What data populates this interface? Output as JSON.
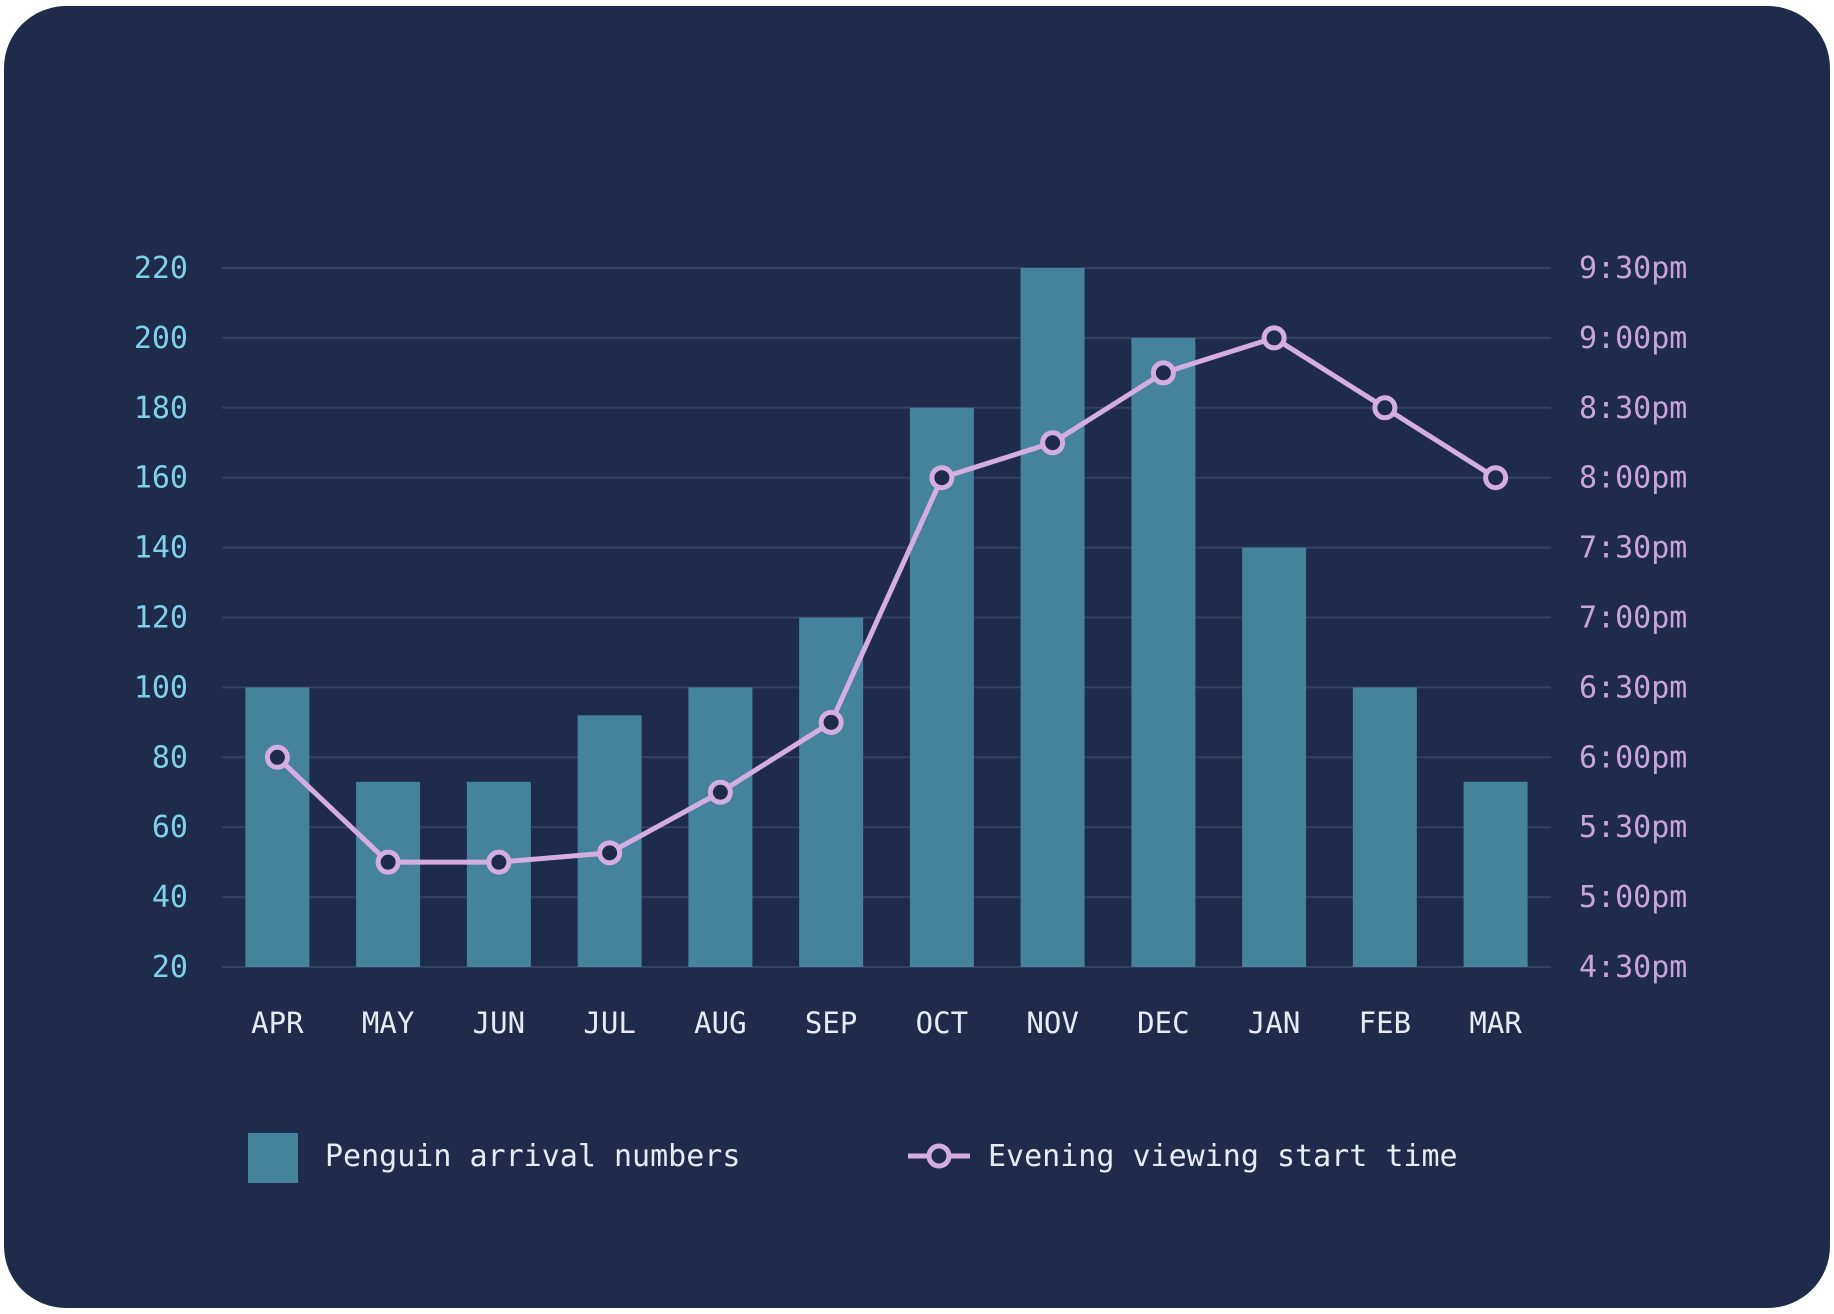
{
  "colors": {
    "background": "#1f2b4a",
    "bar": "#45839c",
    "line": "#d4aee0",
    "left_axis_text": "#7fd1ea",
    "right_axis_text": "#c9a4dc",
    "category_text": "#e6ecf3",
    "legend_text": "#e6ecf3",
    "grid": "#33425f"
  },
  "chart_data": {
    "type": "bar",
    "categories": [
      "APR",
      "MAY",
      "JUN",
      "JUL",
      "AUG",
      "SEP",
      "OCT",
      "NOV",
      "DEC",
      "JAN",
      "FEB",
      "MAR"
    ],
    "series": [
      {
        "name": "Penguin arrival numbers",
        "type": "bar",
        "axis": "left",
        "values": [
          100,
          73,
          73,
          92,
          100,
          120,
          180,
          220,
          200,
          140,
          100,
          73
        ]
      },
      {
        "name": "Evening viewing start time",
        "type": "line",
        "axis": "right",
        "values": [
          "6:00pm",
          "5:15pm",
          "5:15pm",
          "5:19pm",
          "5:45pm",
          "6:15pm",
          "8:00pm",
          "8:15pm",
          "8:45pm",
          "9:00pm",
          "8:30pm",
          "8:00pm"
        ]
      }
    ],
    "left_axis": {
      "ticks": [
        "220",
        "200",
        "180",
        "160",
        "140",
        "120",
        "100",
        "80",
        "60",
        "40",
        "20"
      ],
      "ylim": [
        20,
        220
      ]
    },
    "right_axis": {
      "ticks": [
        "9:30pm",
        "9:00pm",
        "8:30pm",
        "8:00pm",
        "7:30pm",
        "7:00pm",
        "6:30pm",
        "6:00pm",
        "5:30pm",
        "5:00pm",
        "4:30pm"
      ],
      "ylim": [
        "4:30pm",
        "9:30pm"
      ]
    },
    "grid": true,
    "legend_position": "bottom",
    "legend": [
      {
        "label": "Penguin arrival numbers",
        "marker": "square"
      },
      {
        "label": "Evening viewing start time",
        "marker": "line-circle"
      }
    ]
  }
}
